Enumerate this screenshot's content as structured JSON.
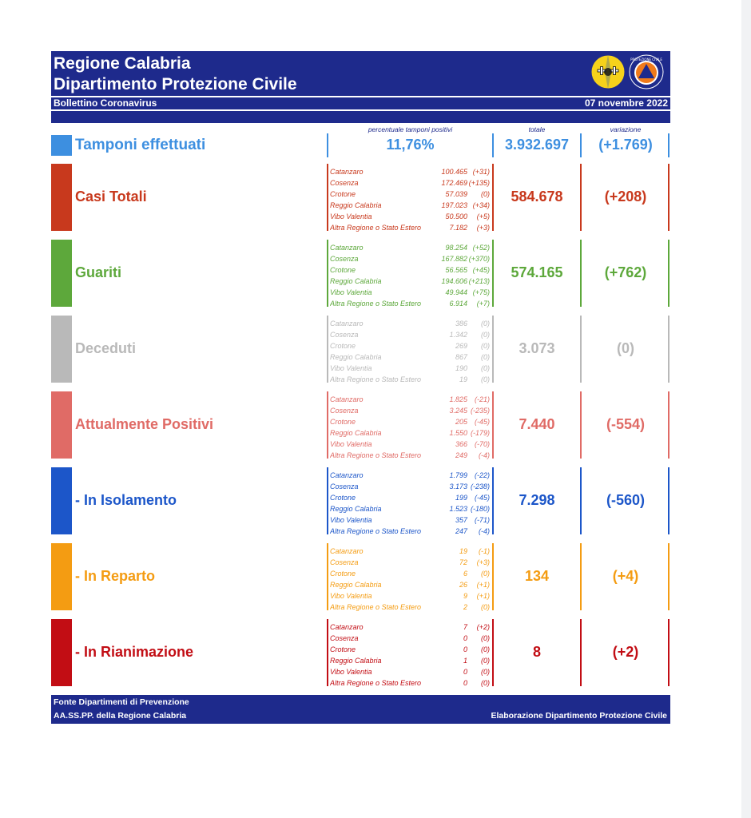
{
  "header": {
    "title_line1": "Regione Calabria",
    "title_line2": "Dipartimento Protezione Civile",
    "subtitle": "Bollettino Coronavirus",
    "date": "07 novembre 2022",
    "logo_text": "PROTEZIONE CIVILE"
  },
  "columns": {
    "pct_label": "percentuale tamponi positivi",
    "total_label": "totale",
    "var_label": "variazione"
  },
  "tamponi": {
    "label": "Tamponi effettuati",
    "percent": "11,76%",
    "total": "3.932.697",
    "variation": "(+1.769)",
    "color": "#3d8fe0"
  },
  "categories": [
    {
      "label": "Casi Totali",
      "color": "#c8391d",
      "total": "584.678",
      "variation": "(+208)",
      "rows": [
        {
          "name": "Catanzaro",
          "value": "100.465",
          "delta": "(+31)"
        },
        {
          "name": "Cosenza",
          "value": "172.469",
          "delta": "(+135)"
        },
        {
          "name": "Crotone",
          "value": "57.039",
          "delta": "(0)"
        },
        {
          "name": "Reggio Calabria",
          "value": "197.023",
          "delta": "(+34)"
        },
        {
          "name": "Vibo Valentia",
          "value": "50.500",
          "delta": "(+5)"
        },
        {
          "name": "Altra Regione o Stato Estero",
          "value": "7.182",
          "delta": "(+3)"
        }
      ]
    },
    {
      "label": "Guariti",
      "color": "#5da83b",
      "total": "574.165",
      "variation": "(+762)",
      "rows": [
        {
          "name": "Catanzaro",
          "value": "98.254",
          "delta": "(+52)"
        },
        {
          "name": "Cosenza",
          "value": "167.882",
          "delta": "(+370)"
        },
        {
          "name": "Crotone",
          "value": "56.565",
          "delta": "(+45)"
        },
        {
          "name": "Reggio Calabria",
          "value": "194.606",
          "delta": "(+213)"
        },
        {
          "name": "Vibo Valentia",
          "value": "49.944",
          "delta": "(+75)"
        },
        {
          "name": "Altra Regione o Stato Estero",
          "value": "6.914",
          "delta": "(+7)"
        }
      ]
    },
    {
      "label": "Deceduti",
      "color": "#b9b9b9",
      "total": "3.073",
      "variation": "(0)",
      "rows": [
        {
          "name": "Catanzaro",
          "value": "386",
          "delta": "(0)"
        },
        {
          "name": "Cosenza",
          "value": "1.342",
          "delta": "(0)"
        },
        {
          "name": "Crotone",
          "value": "269",
          "delta": "(0)"
        },
        {
          "name": "Reggio Calabria",
          "value": "867",
          "delta": "(0)"
        },
        {
          "name": "Vibo Valentia",
          "value": "190",
          "delta": "(0)"
        },
        {
          "name": "Altra Regione o Stato Estero",
          "value": "19",
          "delta": "(0)"
        }
      ]
    },
    {
      "label": "Attualmente Positivi",
      "color": "#e06b66",
      "total": "7.440",
      "variation": "(-554)",
      "rows": [
        {
          "name": "Catanzaro",
          "value": "1.825",
          "delta": "(-21)"
        },
        {
          "name": "Cosenza",
          "value": "3.245",
          "delta": "(-235)"
        },
        {
          "name": "Crotone",
          "value": "205",
          "delta": "(-45)"
        },
        {
          "name": "Reggio Calabria",
          "value": "1.550",
          "delta": "(-179)"
        },
        {
          "name": "Vibo Valentia",
          "value": "366",
          "delta": "(-70)"
        },
        {
          "name": "Altra Regione o Stato Estero",
          "value": "249",
          "delta": "(-4)"
        }
      ]
    },
    {
      "label": " - In Isolamento",
      "color": "#1c56c9",
      "total": "7.298",
      "variation": "(-560)",
      "rows": [
        {
          "name": "Catanzaro",
          "value": "1.799",
          "delta": "(-22)"
        },
        {
          "name": "Cosenza",
          "value": "3.173",
          "delta": "(-238)"
        },
        {
          "name": "Crotone",
          "value": "199",
          "delta": "(-45)"
        },
        {
          "name": "Reggio Calabria",
          "value": "1.523",
          "delta": "(-180)"
        },
        {
          "name": "Vibo Valentia",
          "value": "357",
          "delta": "(-71)"
        },
        {
          "name": "Altra Regione o Stato Estero",
          "value": "247",
          "delta": "(-4)"
        }
      ]
    },
    {
      "label": " - In Reparto",
      "color": "#f49c12",
      "total": "134",
      "variation": "(+4)",
      "rows": [
        {
          "name": "Catanzaro",
          "value": "19",
          "delta": "(-1)"
        },
        {
          "name": "Cosenza",
          "value": "72",
          "delta": "(+3)"
        },
        {
          "name": "Crotone",
          "value": "6",
          "delta": "(0)"
        },
        {
          "name": "Reggio Calabria",
          "value": "26",
          "delta": "(+1)"
        },
        {
          "name": "Vibo Valentia",
          "value": "9",
          "delta": "(+1)"
        },
        {
          "name": "Altra Regione o Stato Estero",
          "value": "2",
          "delta": "(0)"
        }
      ]
    },
    {
      "label": " - In Rianimazione",
      "color": "#c20d14",
      "total": "8",
      "variation": "(+2)",
      "rows": [
        {
          "name": "Catanzaro",
          "value": "7",
          "delta": "(+2)"
        },
        {
          "name": "Cosenza",
          "value": "0",
          "delta": "(0)"
        },
        {
          "name": "Crotone",
          "value": "0",
          "delta": "(0)"
        },
        {
          "name": "Reggio Calabria",
          "value": "1",
          "delta": "(0)"
        },
        {
          "name": "Vibo Valentia",
          "value": "0",
          "delta": "(0)"
        },
        {
          "name": "Altra Regione o Stato Estero",
          "value": "0",
          "delta": "(0)"
        }
      ]
    }
  ],
  "footer": {
    "source_line1": "Fonte Dipartimenti di Prevenzione",
    "source_line2": "AA.SS.PP.  della Regione Calabria",
    "credit": "Elaborazione Dipartimento Protezione Civile"
  }
}
